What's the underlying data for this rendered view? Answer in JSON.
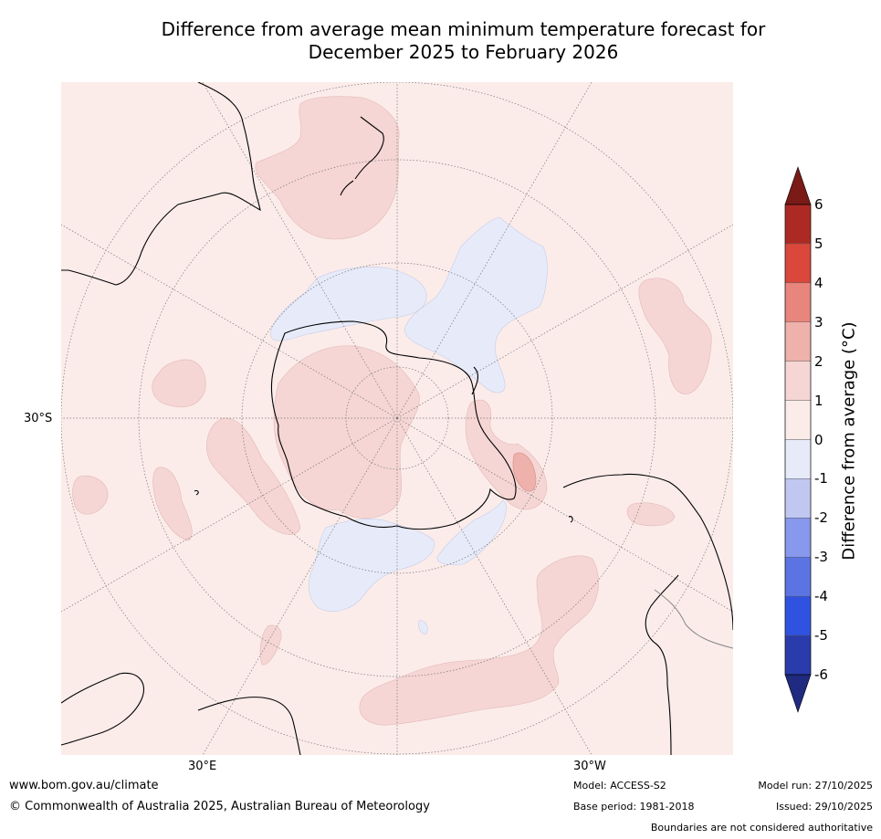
{
  "title": {
    "line1": "Difference from average mean minimum temperature forecast for",
    "line2": "December 2025 to February 2026"
  },
  "map": {
    "projection": "south-polar-stereographic",
    "lat_label": "30°S",
    "lon_labels": [
      "30°E",
      "30°W"
    ],
    "regions": [
      {
        "category": "0 to 1",
        "area": "background ocean and land"
      },
      {
        "category": "1 to 2",
        "area": "Antarctica interior and West Antarctic"
      },
      {
        "category": "1 to 2",
        "area": "Tasman Sea and New Zealand"
      },
      {
        "category": "1 to 2",
        "area": "southern Indian Ocean patches"
      },
      {
        "category": "1 to 2",
        "area": "South Atlantic patches"
      },
      {
        "category": "1 to 2",
        "area": "southeast Pacific"
      },
      {
        "category": "2 to 3",
        "area": "Weddell Sea near Antarctic Peninsula"
      },
      {
        "category": "-1 to 0",
        "area": "Southern Ocean near Ross Sea"
      },
      {
        "category": "-1 to 0",
        "area": "South Pacific tongue"
      },
      {
        "category": "-1 to 0",
        "area": "Southern Ocean south of Africa"
      },
      {
        "category": "-1 to 0",
        "area": "Drake Passage / Scotia Sea"
      }
    ]
  },
  "colorbar": {
    "label": "Difference from average (°C)",
    "ticks": [
      "6",
      "5",
      "4",
      "3",
      "2",
      "1",
      "0",
      "-1",
      "-2",
      "-3",
      "-4",
      "-5",
      "-6"
    ],
    "bands_top_to_bottom": [
      "#ad2a24",
      "#d9483b",
      "#e8857c",
      "#eeb1ab",
      "#f5d6d4",
      "#fbecea",
      "#e7ebf9",
      "#c0c8f1",
      "#8898ec",
      "#5c74e3",
      "#2f52e1",
      "#2a3bac"
    ],
    "over_color": "#7a1b17",
    "under_color": "#1f2a80"
  },
  "colors": {
    "pos1": "#fbecea",
    "pos2": "#f5d6d4",
    "pos3": "#eeb1ab",
    "neg1": "#e7ebf9",
    "coast": "#000000",
    "border": "#888888"
  },
  "footer": {
    "url": "www.bom.gov.au/climate",
    "copyright": "© Commonwealth of Australia 2025, Australian Bureau of Meteorology",
    "model": "Model: ACCESS-S2",
    "base_period": "Base period: 1981-2018",
    "model_run": "Model run: 27/10/2025",
    "issued": "Issued: 29/10/2025",
    "disclaimer": "Boundaries are not considered authoritative"
  }
}
